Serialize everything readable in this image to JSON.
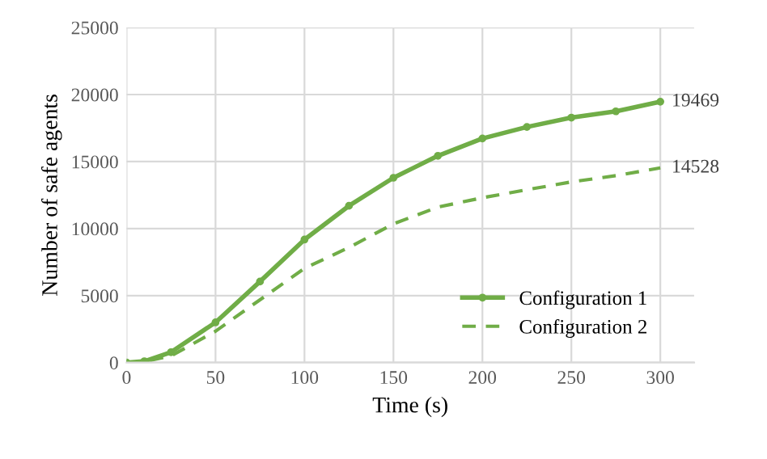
{
  "chart_data": {
    "type": "line",
    "xlabel": "Time (s)",
    "ylabel": "Number of safe agents",
    "x": [
      0,
      10,
      25,
      50,
      75,
      100,
      125,
      150,
      175,
      200,
      225,
      250,
      275,
      300
    ],
    "series": [
      {
        "name": "Configuration 1",
        "color": "#70ad47",
        "line_style": "solid",
        "marker": "circle",
        "values": [
          0,
          100,
          780,
          3000,
          6050,
          9180,
          11700,
          13790,
          15430,
          16720,
          17580,
          18280,
          18750,
          19469
        ]
      },
      {
        "name": "Configuration 2",
        "color": "#70ad47",
        "line_style": "dashed",
        "marker": "none",
        "values": [
          0,
          80,
          500,
          2340,
          4690,
          7030,
          8590,
          10350,
          11600,
          12300,
          12900,
          13480,
          13950,
          14528
        ]
      }
    ],
    "annotations": [
      {
        "text": "19469",
        "x": 300,
        "y": 19469
      },
      {
        "text": "14528",
        "x": 300,
        "y": 14528
      }
    ],
    "xlim": [
      0,
      319
    ],
    "xticks": [
      0,
      50,
      100,
      150,
      200,
      250,
      300
    ],
    "ylim": [
      0,
      25000
    ],
    "yticks": [
      0,
      5000,
      10000,
      15000,
      20000,
      25000
    ],
    "grid": true,
    "legend": "bottom right"
  }
}
